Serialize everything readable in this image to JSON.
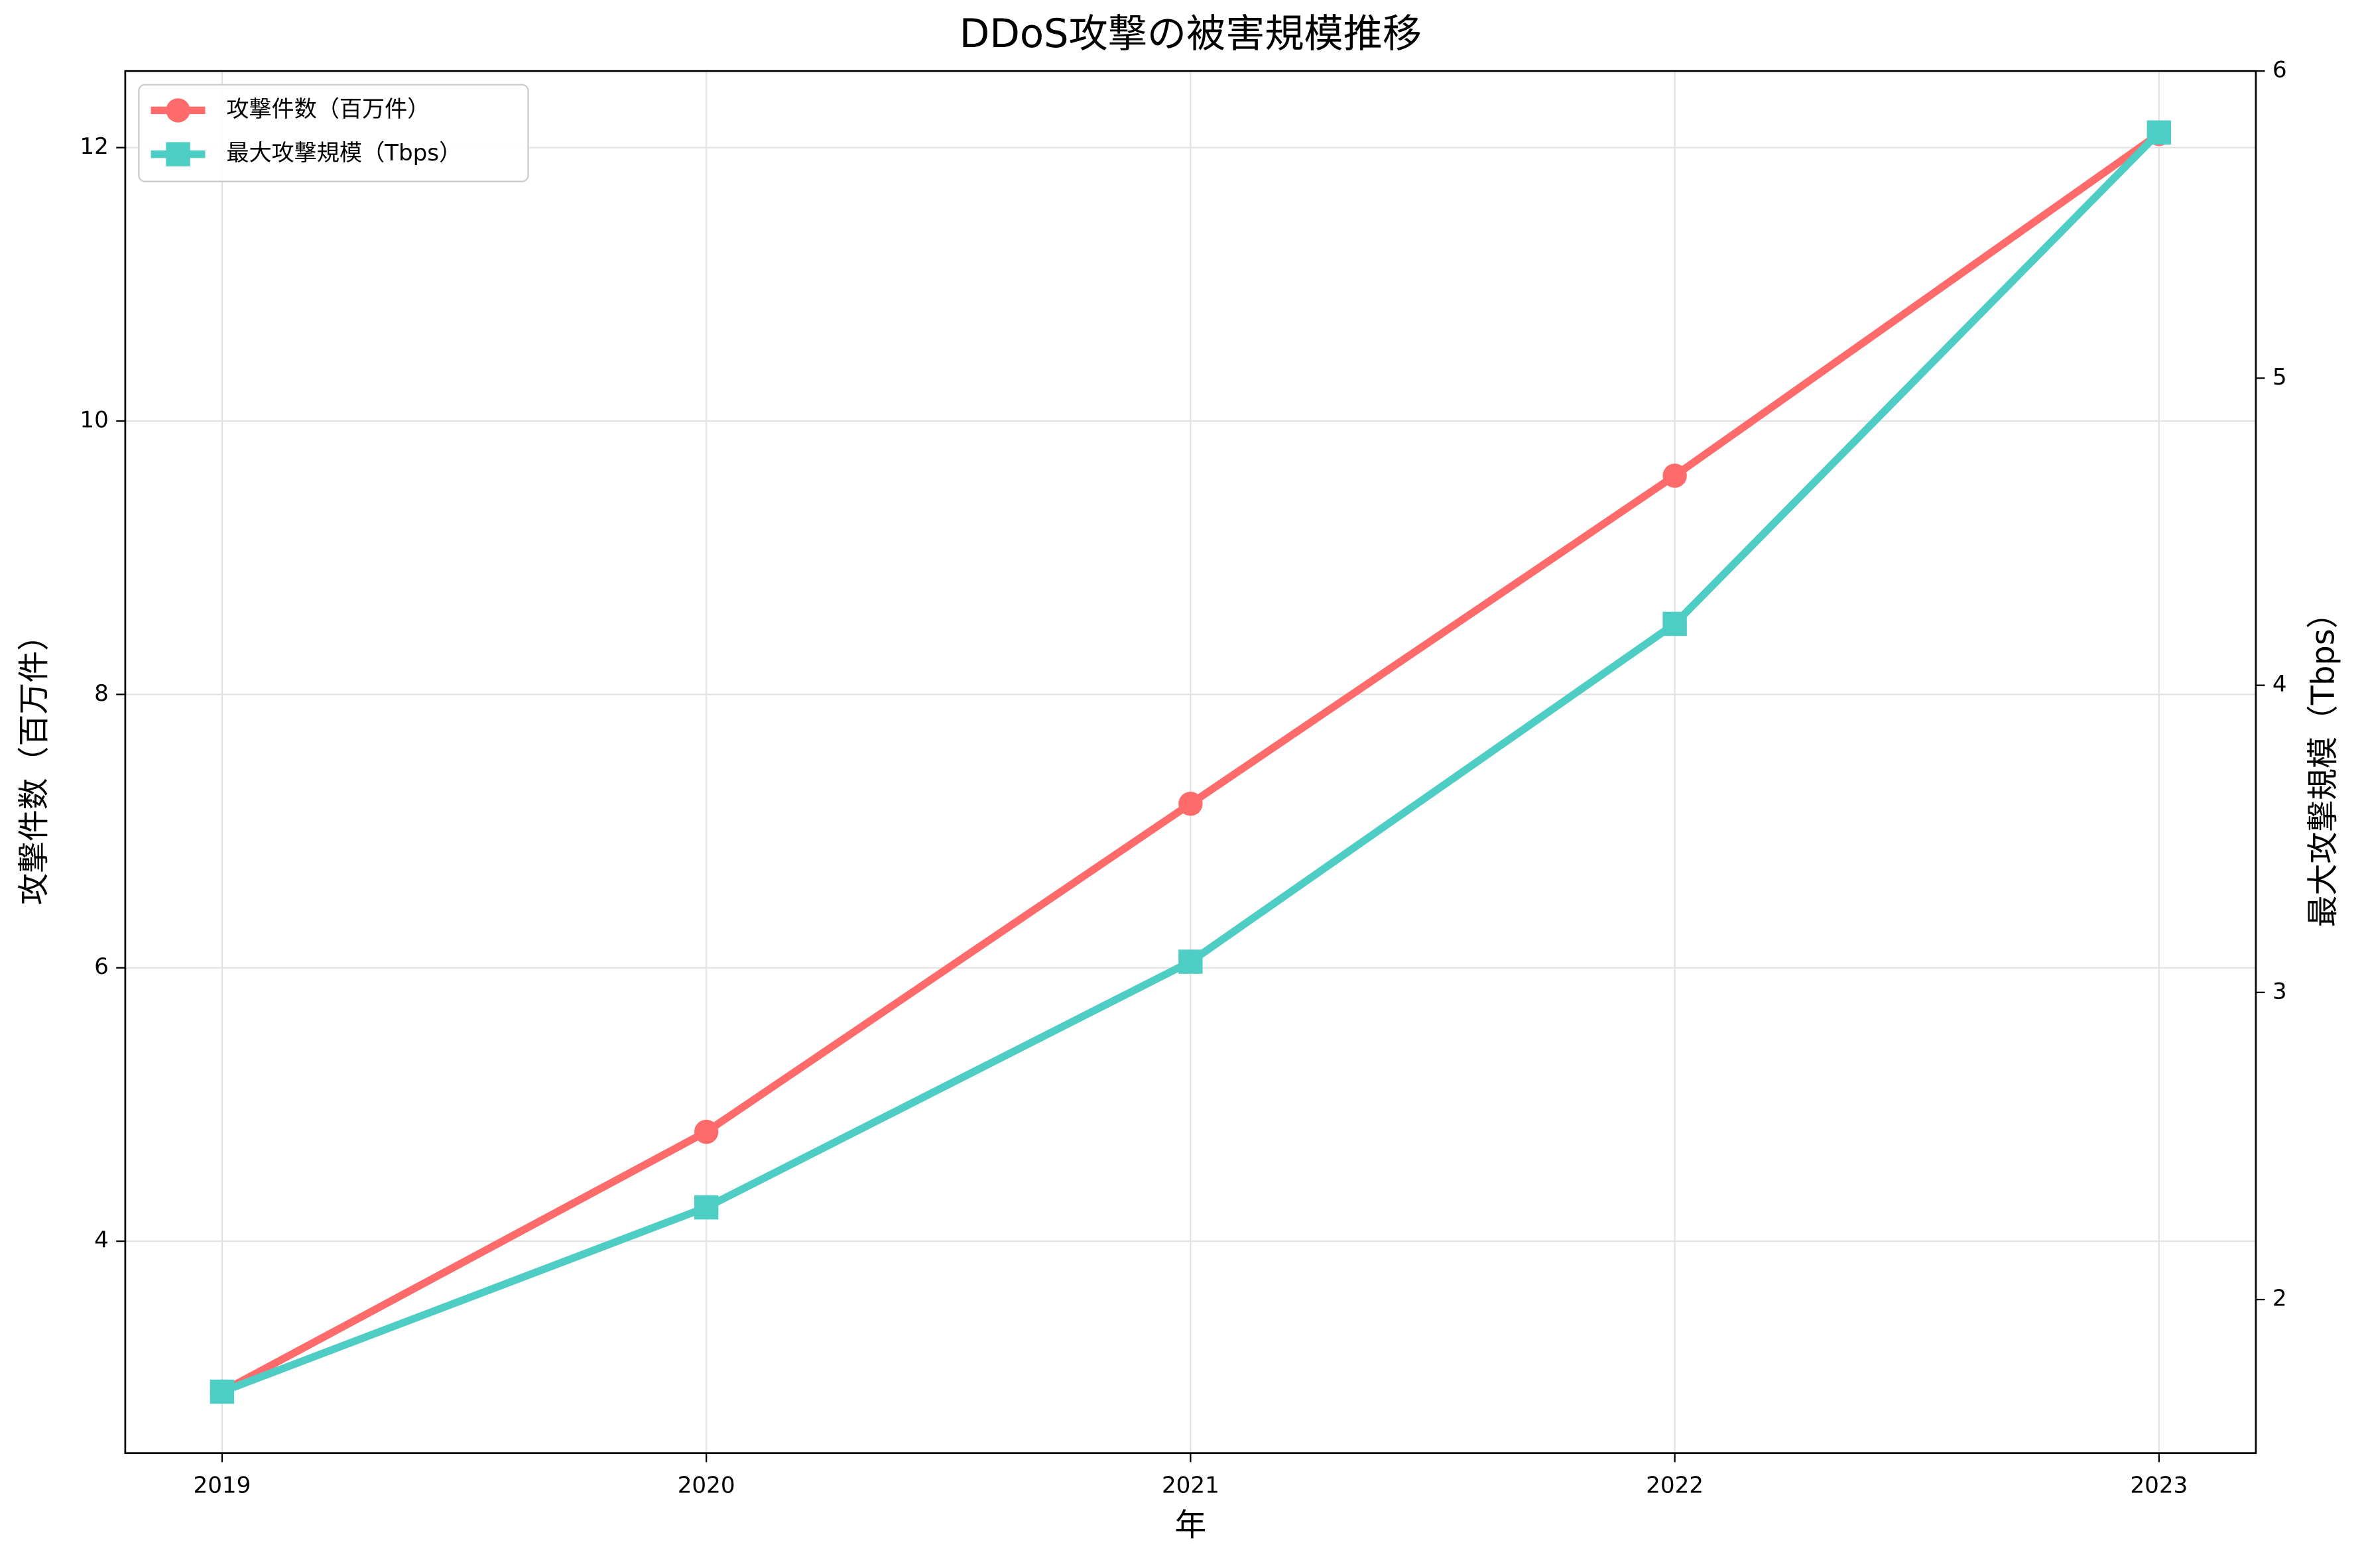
{
  "chart_data": {
    "type": "line",
    "title": "DDoS攻撃の被害規模推移",
    "x_label": "年",
    "y_label": "攻撃件数（百万件）",
    "y2_label": "最大攻撃規模（Tbps）",
    "x": [
      2019,
      2020,
      2021,
      2022,
      2023
    ],
    "xlim": [
      2018.8,
      2023.2
    ],
    "xticks": [
      2019,
      2020,
      2021,
      2022,
      2023
    ],
    "ylim": [
      2.45,
      12.56
    ],
    "yticks": [
      4,
      6,
      8,
      10,
      12
    ],
    "y2lim": [
      1.5,
      6.0
    ],
    "y2ticks": [
      2,
      3,
      4,
      5,
      6
    ],
    "grid": true,
    "legend": "upper left",
    "series": [
      {
        "name": "攻撃件数（百万件）",
        "color": "#ff6b6b",
        "marker": "circle",
        "values": [
          2.9,
          4.8,
          7.2,
          9.6,
          12.1
        ]
      },
      {
        "name": "最大攻撃規模（Tbps）",
        "color": "#4ecdc4",
        "marker": "square",
        "axis": "y2",
        "values": [
          1.7,
          2.3,
          3.1,
          4.2,
          5.8
        ]
      }
    ]
  }
}
